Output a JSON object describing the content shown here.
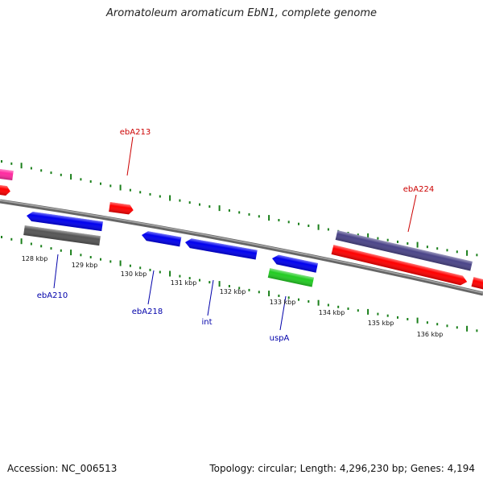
{
  "title": "Aromatoleum aromaticum EbN1, complete genome",
  "footer": {
    "accession": "Accession: NC_006513",
    "summary": "Topology: circular; Length: 4,296,230 bp; Genes: 4,194"
  },
  "colors": {
    "backbone": "#777777",
    "tick": "#1a7f1a",
    "forward_label": "#cc0000",
    "reverse_label": "#0000aa",
    "red": "#ff0000",
    "blue": "#0000ee",
    "grey": "#555555",
    "navy": "#4a4488",
    "green": "#22cc22",
    "pink": "#ff2aa0"
  },
  "scale_labels": [
    "128 kbp",
    "129 kbp",
    "130 kbp",
    "131 kbp",
    "132 kbp",
    "133 kbp",
    "134 kbp",
    "135 kbp",
    "136 kbp"
  ],
  "gene_labels": {
    "forward": [
      "ebA213",
      "ebA224"
    ],
    "reverse": [
      "ebA210",
      "ebA218",
      "int",
      "uspA"
    ]
  }
}
